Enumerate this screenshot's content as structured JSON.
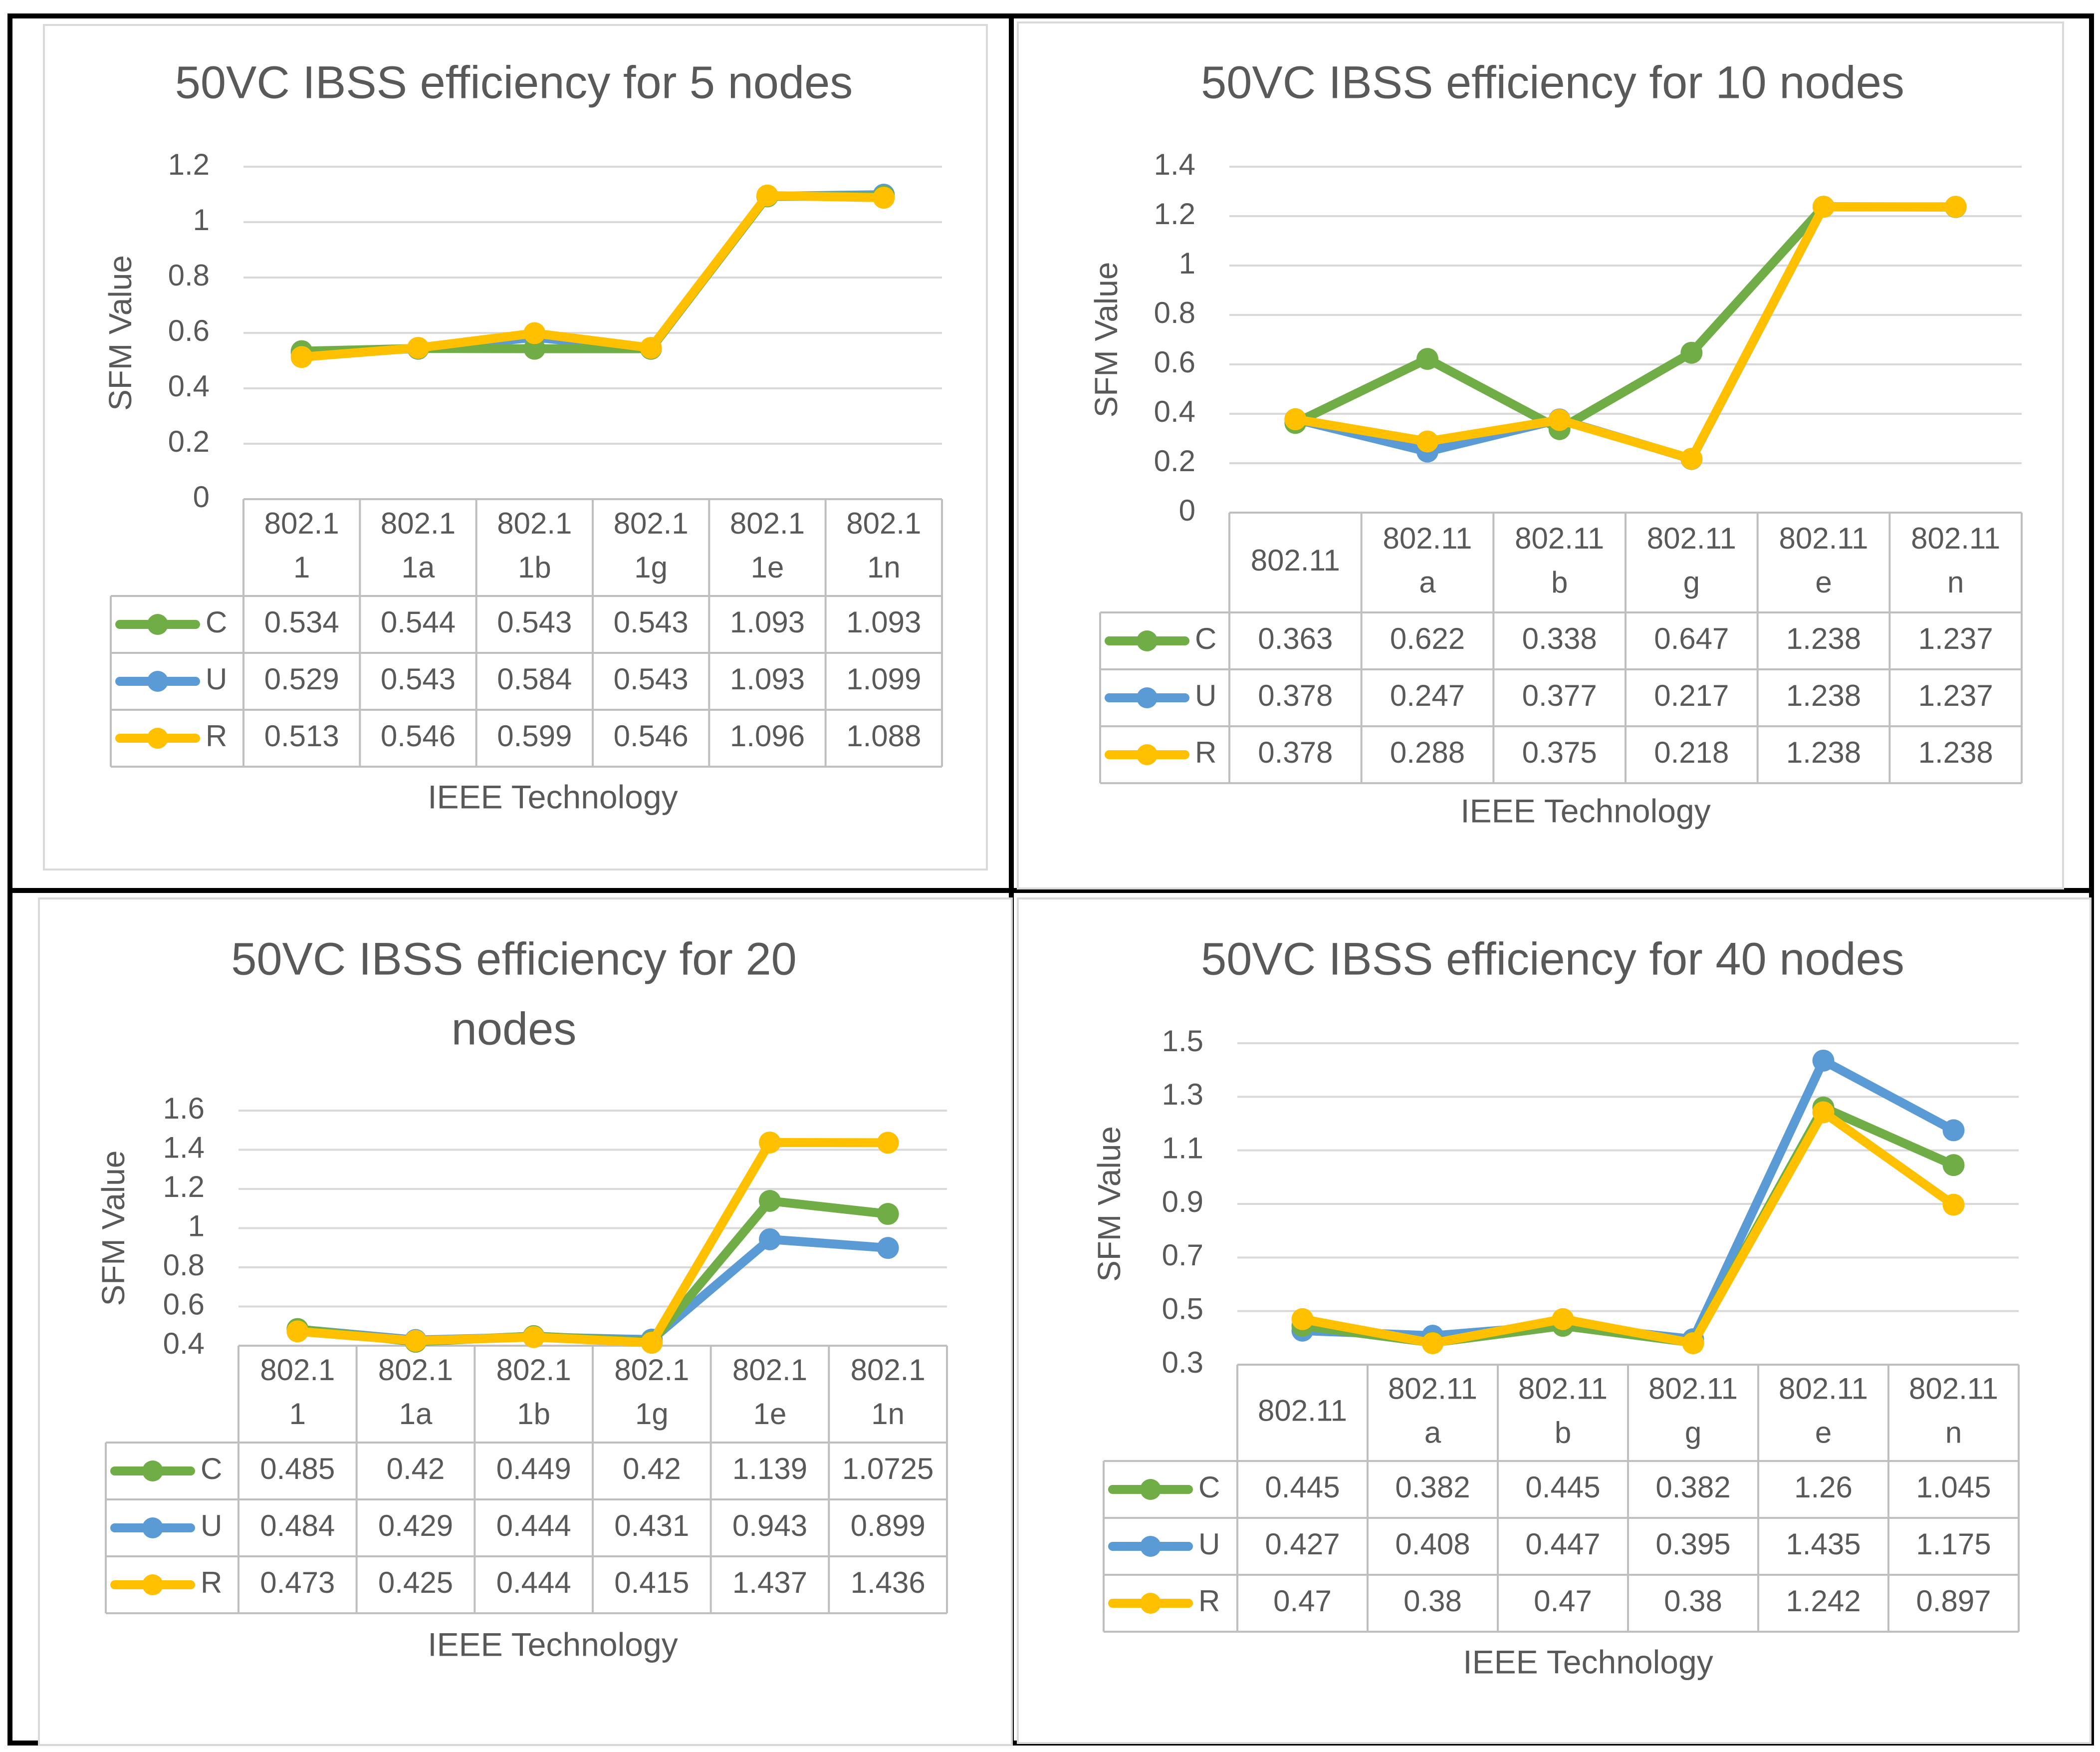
{
  "colors": {
    "C": "#70AD47",
    "U": "#5B9BD5",
    "R": "#FFC000",
    "grid": "#D9D9D9",
    "text": "#595959",
    "border": "#000000"
  },
  "chart_data": [
    {
      "type": "line",
      "title": "50VC IBSS efficiency for 5 nodes",
      "title_lines": [
        "50VC IBSS efficiency for 5 nodes"
      ],
      "ylabel": "SFM Value",
      "xlabel": "IEEE Technology",
      "ylim": [
        0,
        1.2
      ],
      "yticks": [
        0,
        0.2,
        0.4,
        0.6,
        0.8,
        1,
        1.2
      ],
      "ytick_labels": [
        "0",
        "0.2",
        "0.4",
        "0.6",
        "0.8",
        "1",
        "1.2"
      ],
      "categories": [
        "802.11",
        "802.11a",
        "802.11b",
        "802.11g",
        "802.11e",
        "802.11n"
      ],
      "category_lines": [
        [
          "802.1",
          "1"
        ],
        [
          "802.1",
          "1a"
        ],
        [
          "802.1",
          "1b"
        ],
        [
          "802.1",
          "1g"
        ],
        [
          "802.1",
          "1e"
        ],
        [
          "802.1",
          "1n"
        ]
      ],
      "series": [
        {
          "name": "C",
          "values": [
            0.534,
            0.544,
            0.543,
            0.543,
            1.093,
            1.093
          ],
          "labels": [
            "0.534",
            "0.544",
            "0.543",
            "0.543",
            "1.093",
            "1.093"
          ]
        },
        {
          "name": "U",
          "values": [
            0.529,
            0.543,
            0.584,
            0.543,
            1.093,
            1.099
          ],
          "labels": [
            "0.529",
            "0.543",
            "0.584",
            "0.543",
            "1.093",
            "1.099"
          ]
        },
        {
          "name": "R",
          "values": [
            0.513,
            0.546,
            0.599,
            0.546,
            1.096,
            1.088
          ],
          "labels": [
            "0.513",
            "0.546",
            "0.599",
            "0.546",
            "1.096",
            "1.088"
          ]
        }
      ]
    },
    {
      "type": "line",
      "title": "50VC IBSS efficiency for 10 nodes",
      "title_lines": [
        "50VC IBSS efficiency for 10 nodes"
      ],
      "ylabel": "SFM Value",
      "xlabel": "IEEE Technology",
      "ylim": [
        0,
        1.4
      ],
      "yticks": [
        0,
        0.2,
        0.4,
        0.6,
        0.8,
        1,
        1.2,
        1.4
      ],
      "ytick_labels": [
        "0",
        "0.2",
        "0.4",
        "0.6",
        "0.8",
        "1",
        "1.2",
        "1.4"
      ],
      "categories": [
        "802.11",
        "802.11a",
        "802.11b",
        "802.11g",
        "802.11e",
        "802.11n"
      ],
      "category_lines": [
        [
          "802.11"
        ],
        [
          "802.11",
          "a"
        ],
        [
          "802.11",
          "b"
        ],
        [
          "802.11",
          "g"
        ],
        [
          "802.11",
          "e"
        ],
        [
          "802.11",
          "n"
        ]
      ],
      "series": [
        {
          "name": "C",
          "values": [
            0.363,
            0.622,
            0.338,
            0.647,
            1.238,
            1.237
          ],
          "labels": [
            "0.363",
            "0.622",
            "0.338",
            "0.647",
            "1.238",
            "1.237"
          ]
        },
        {
          "name": "U",
          "values": [
            0.378,
            0.247,
            0.377,
            0.217,
            1.238,
            1.237
          ],
          "labels": [
            "0.378",
            "0.247",
            "0.377",
            "0.217",
            "1.238",
            "1.237"
          ]
        },
        {
          "name": "R",
          "values": [
            0.378,
            0.288,
            0.375,
            0.218,
            1.238,
            1.238
          ],
          "labels": [
            "0.378",
            "0.288",
            "0.375",
            "0.218",
            "1.238",
            "1.238"
          ]
        }
      ]
    },
    {
      "type": "line",
      "title": "50VC IBSS efficiency for 20 nodes",
      "title_lines": [
        "50VC IBSS efficiency for 20",
        "nodes"
      ],
      "ylabel": "SFM Value",
      "xlabel": "IEEE Technology",
      "ylim": [
        0.4,
        1.6
      ],
      "yticks": [
        0.4,
        0.6,
        0.8,
        1,
        1.2,
        1.4,
        1.6
      ],
      "ytick_labels": [
        "0.4",
        "0.6",
        "0.8",
        "1",
        "1.2",
        "1.4",
        "1.6"
      ],
      "categories": [
        "802.11",
        "802.11a",
        "802.11b",
        "802.11g",
        "802.11e",
        "802.11n"
      ],
      "category_lines": [
        [
          "802.1",
          "1"
        ],
        [
          "802.1",
          "1a"
        ],
        [
          "802.1",
          "1b"
        ],
        [
          "802.1",
          "1g"
        ],
        [
          "802.1",
          "1e"
        ],
        [
          "802.1",
          "1n"
        ]
      ],
      "series": [
        {
          "name": "C",
          "values": [
            0.485,
            0.42,
            0.449,
            0.42,
            1.139,
            1.0725
          ],
          "labels": [
            "0.485",
            "0.42",
            "0.449",
            "0.42",
            "1.139",
            "1.0725"
          ]
        },
        {
          "name": "U",
          "values": [
            0.484,
            0.429,
            0.444,
            0.431,
            0.943,
            0.899
          ],
          "labels": [
            "0.484",
            "0.429",
            "0.444",
            "0.431",
            "0.943",
            "0.899"
          ]
        },
        {
          "name": "R",
          "values": [
            0.473,
            0.425,
            0.444,
            0.415,
            1.437,
            1.436
          ],
          "labels": [
            "0.473",
            "0.425",
            "0.444",
            "0.415",
            "1.437",
            "1.436"
          ]
        }
      ]
    },
    {
      "type": "line",
      "title": "50VC IBSS efficiency for 40 nodes",
      "title_lines": [
        "50VC IBSS efficiency for 40 nodes"
      ],
      "ylabel": "SFM Value",
      "xlabel": "IEEE Technology",
      "ylim": [
        0.3,
        1.5
      ],
      "yticks": [
        0.3,
        0.5,
        0.7,
        0.9,
        1.1,
        1.3,
        1.5
      ],
      "ytick_labels": [
        "0.3",
        "0.5",
        "0.7",
        "0.9",
        "1.1",
        "1.3",
        "1.5"
      ],
      "categories": [
        "802.11",
        "802.11a",
        "802.11b",
        "802.11g",
        "802.11e",
        "802.11n"
      ],
      "category_lines": [
        [
          "802.11"
        ],
        [
          "802.11",
          "a"
        ],
        [
          "802.11",
          "b"
        ],
        [
          "802.11",
          "g"
        ],
        [
          "802.11",
          "e"
        ],
        [
          "802.11",
          "n"
        ]
      ],
      "series": [
        {
          "name": "C",
          "values": [
            0.445,
            0.382,
            0.445,
            0.382,
            1.26,
            1.045
          ],
          "labels": [
            "0.445",
            "0.382",
            "0.445",
            "0.382",
            "1.26",
            "1.045"
          ]
        },
        {
          "name": "U",
          "values": [
            0.427,
            0.408,
            0.447,
            0.395,
            1.435,
            1.175
          ],
          "labels": [
            "0.427",
            "0.408",
            "0.447",
            "0.395",
            "1.435",
            "1.175"
          ]
        },
        {
          "name": "R",
          "values": [
            0.47,
            0.38,
            0.47,
            0.38,
            1.242,
            0.897
          ],
          "labels": [
            "0.47",
            "0.38",
            "0.47",
            "0.38",
            "1.242",
            "0.897"
          ]
        }
      ]
    }
  ]
}
